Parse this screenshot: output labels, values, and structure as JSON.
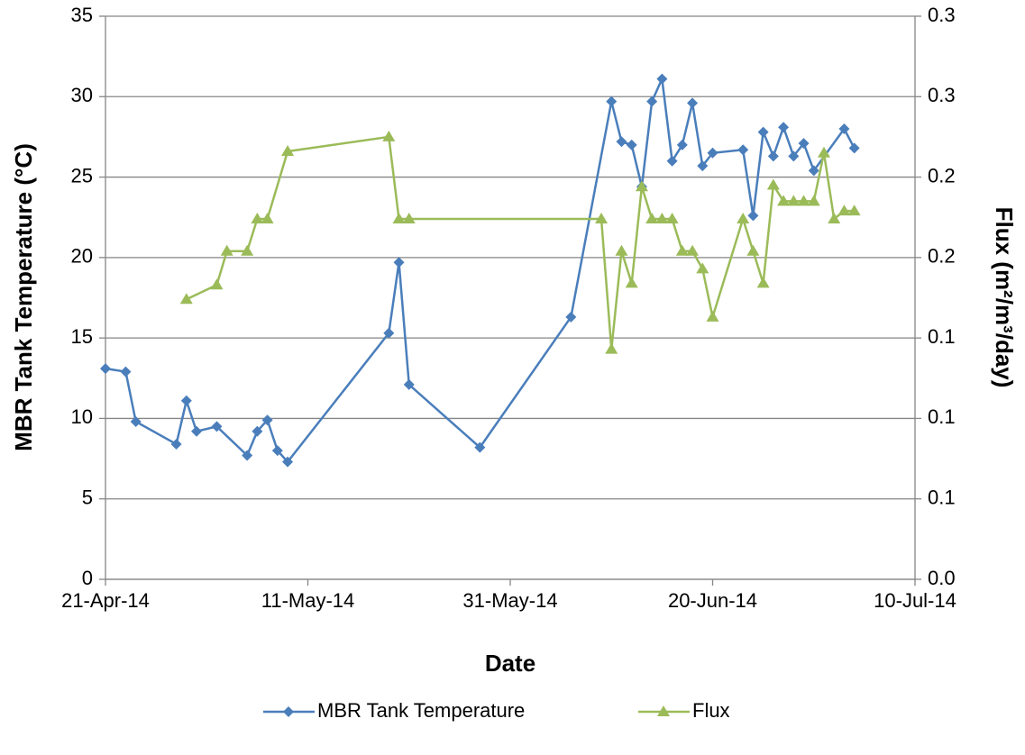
{
  "chart_data": {
    "type": "line",
    "x_label": "Date",
    "y_label": "MBR Tank Temperature (°C)",
    "y2_label": "Flux (m²/m³/day)",
    "xlim": [
      "2014-04-21",
      "2014-07-10"
    ],
    "xticks": [
      {
        "value": "2014-04-21",
        "label": "21-Apr-14"
      },
      {
        "value": "2014-05-11",
        "label": "11-May-14"
      },
      {
        "value": "2014-05-31",
        "label": "31-May-14"
      },
      {
        "value": "2014-06-20",
        "label": "20-Jun-14"
      },
      {
        "value": "2014-07-10",
        "label": "10-Jul-14"
      }
    ],
    "ylim": [
      0,
      35
    ],
    "yticks": [
      0,
      5,
      10,
      15,
      20,
      25,
      30,
      35
    ],
    "y2lim": [
      0,
      0.35
    ],
    "y2ticks": [
      {
        "value": 0,
        "label": "0.0"
      },
      {
        "value": 0.05,
        "label": "0.1"
      },
      {
        "value": 0.1,
        "label": "0.1"
      },
      {
        "value": 0.15,
        "label": "0.1"
      },
      {
        "value": 0.2,
        "label": "0.2"
      },
      {
        "value": 0.25,
        "label": "0.2"
      },
      {
        "value": 0.3,
        "label": "0.3"
      },
      {
        "value": 0.35,
        "label": "0.3"
      }
    ],
    "grid": true,
    "legend": "bottom",
    "series": [
      {
        "name": "MBR Tank Temperature",
        "color": "#4a7ebb",
        "marker": "diamond",
        "x": [
          "2014-04-21",
          "2014-04-23",
          "2014-04-24",
          "2014-04-28",
          "2014-04-29",
          "2014-04-30",
          "2014-05-02",
          "2014-05-05",
          "2014-05-06",
          "2014-05-07",
          "2014-05-08",
          "2014-05-09",
          "2014-05-19",
          "2014-05-20",
          "2014-05-21",
          "2014-05-28",
          "2014-06-06",
          "2014-06-10",
          "2014-06-11",
          "2014-06-12",
          "2014-06-13",
          "2014-06-14",
          "2014-06-15",
          "2014-06-16",
          "2014-06-17",
          "2014-06-18",
          "2014-06-19",
          "2014-06-20",
          "2014-06-23",
          "2014-06-24",
          "2014-06-25",
          "2014-06-26",
          "2014-06-27",
          "2014-06-28",
          "2014-06-29",
          "2014-06-30",
          "2014-07-03",
          "2014-07-04"
        ],
        "values": [
          13.1,
          12.9,
          9.8,
          8.4,
          11.1,
          9.2,
          9.5,
          7.7,
          9.2,
          9.9,
          8.0,
          7.3,
          15.3,
          19.7,
          12.1,
          8.2,
          16.3,
          29.7,
          27.2,
          27.0,
          24.4,
          29.7,
          31.1,
          26.0,
          27.0,
          29.6,
          25.7,
          26.5,
          26.7,
          22.6,
          27.8,
          26.3,
          28.1,
          26.3,
          27.1,
          25.4,
          28.0,
          26.8
        ]
      },
      {
        "name": "Flux",
        "color": "#9bbb59",
        "marker": "triangle",
        "axis": "y2",
        "x": [
          "2014-04-29",
          "2014-05-02",
          "2014-05-03",
          "2014-05-05",
          "2014-05-06",
          "2014-05-07",
          "2014-05-09",
          "2014-05-19",
          "2014-05-20",
          "2014-05-21",
          "2014-06-09",
          "2014-06-10",
          "2014-06-11",
          "2014-06-12",
          "2014-06-13",
          "2014-06-14",
          "2014-06-15",
          "2014-06-16",
          "2014-06-17",
          "2014-06-18",
          "2014-06-19",
          "2014-06-20",
          "2014-06-23",
          "2014-06-24",
          "2014-06-25",
          "2014-06-26",
          "2014-06-27",
          "2014-06-28",
          "2014-06-29",
          "2014-06-30",
          "2014-07-01",
          "2014-07-02",
          "2014-07-03",
          "2014-07-04"
        ],
        "values": [
          0.174,
          0.183,
          0.204,
          0.204,
          0.224,
          0.224,
          0.266,
          0.275,
          0.224,
          0.224,
          0.224,
          0.143,
          0.204,
          0.184,
          0.244,
          0.224,
          0.224,
          0.224,
          0.204,
          0.204,
          0.193,
          0.163,
          0.224,
          0.204,
          0.184,
          0.245,
          0.235,
          0.235,
          0.235,
          0.235,
          0.265,
          0.224,
          0.229,
          0.229
        ]
      }
    ]
  }
}
